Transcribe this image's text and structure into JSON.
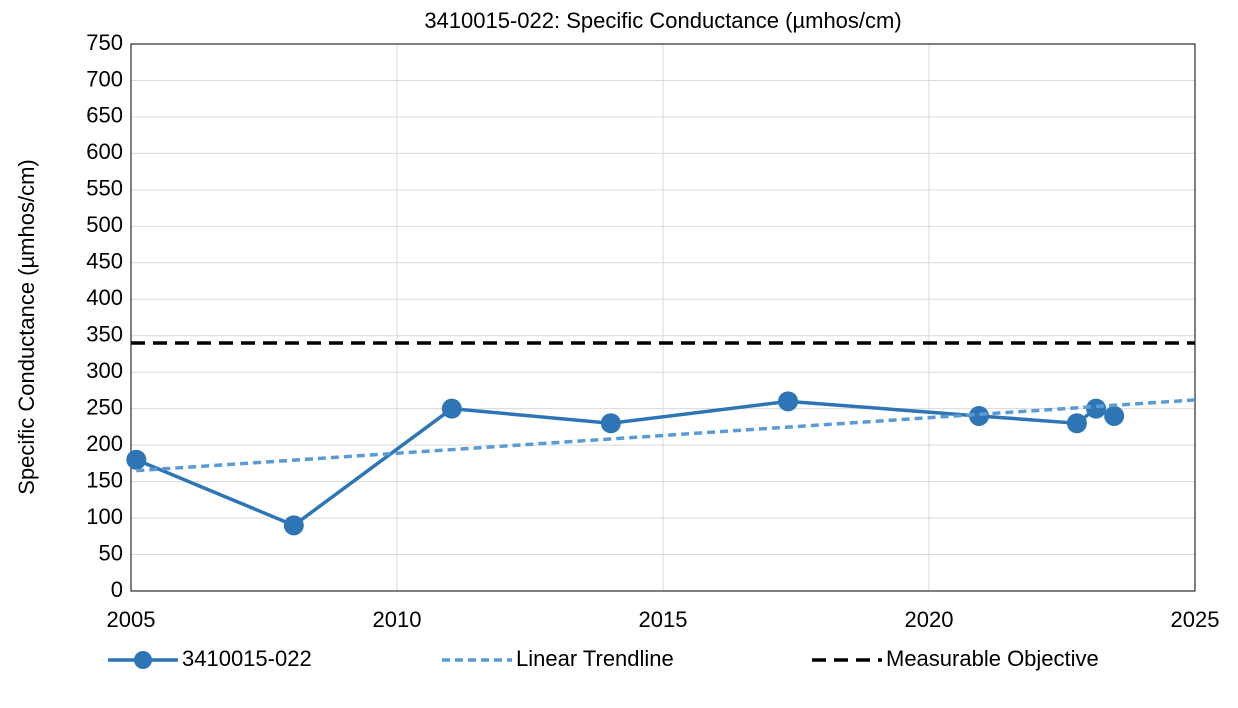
{
  "chart_data": {
    "type": "line",
    "title": "3410015-022: Specific Conductance (µmhos/cm)",
    "y_label": "Specific Conductance (µmhos/cm)",
    "xlim": [
      2005,
      2025
    ],
    "xticks": [
      2005,
      2010,
      2015,
      2020,
      2025
    ],
    "ylim": [
      0,
      750
    ],
    "yticks": [
      0,
      50,
      100,
      150,
      200,
      250,
      300,
      350,
      400,
      450,
      500,
      550,
      600,
      650,
      700,
      750
    ],
    "grid": true,
    "legend": "bottom",
    "series": [
      {
        "name": "3410015-022",
        "color": "#2e75b6",
        "marker": true,
        "dashed": false,
        "x": [
          2005.1,
          2008.06,
          2011.03,
          2014.02,
          2017.35,
          2020.94,
          2022.78,
          2023.14,
          2023.48
        ],
        "values": [
          180,
          90,
          250,
          230,
          260,
          240,
          230,
          250,
          240
        ]
      },
      {
        "name": "Linear Trendline",
        "color": "#5b9bd5",
        "marker": false,
        "dashed": true,
        "x": [
          2005.1,
          2025
        ],
        "values": [
          165,
          262
        ]
      },
      {
        "name": "Measurable Objective",
        "color": "#000000",
        "marker": false,
        "dashed": true,
        "x": [
          2005,
          2025
        ],
        "values": [
          340,
          340
        ]
      }
    ]
  }
}
